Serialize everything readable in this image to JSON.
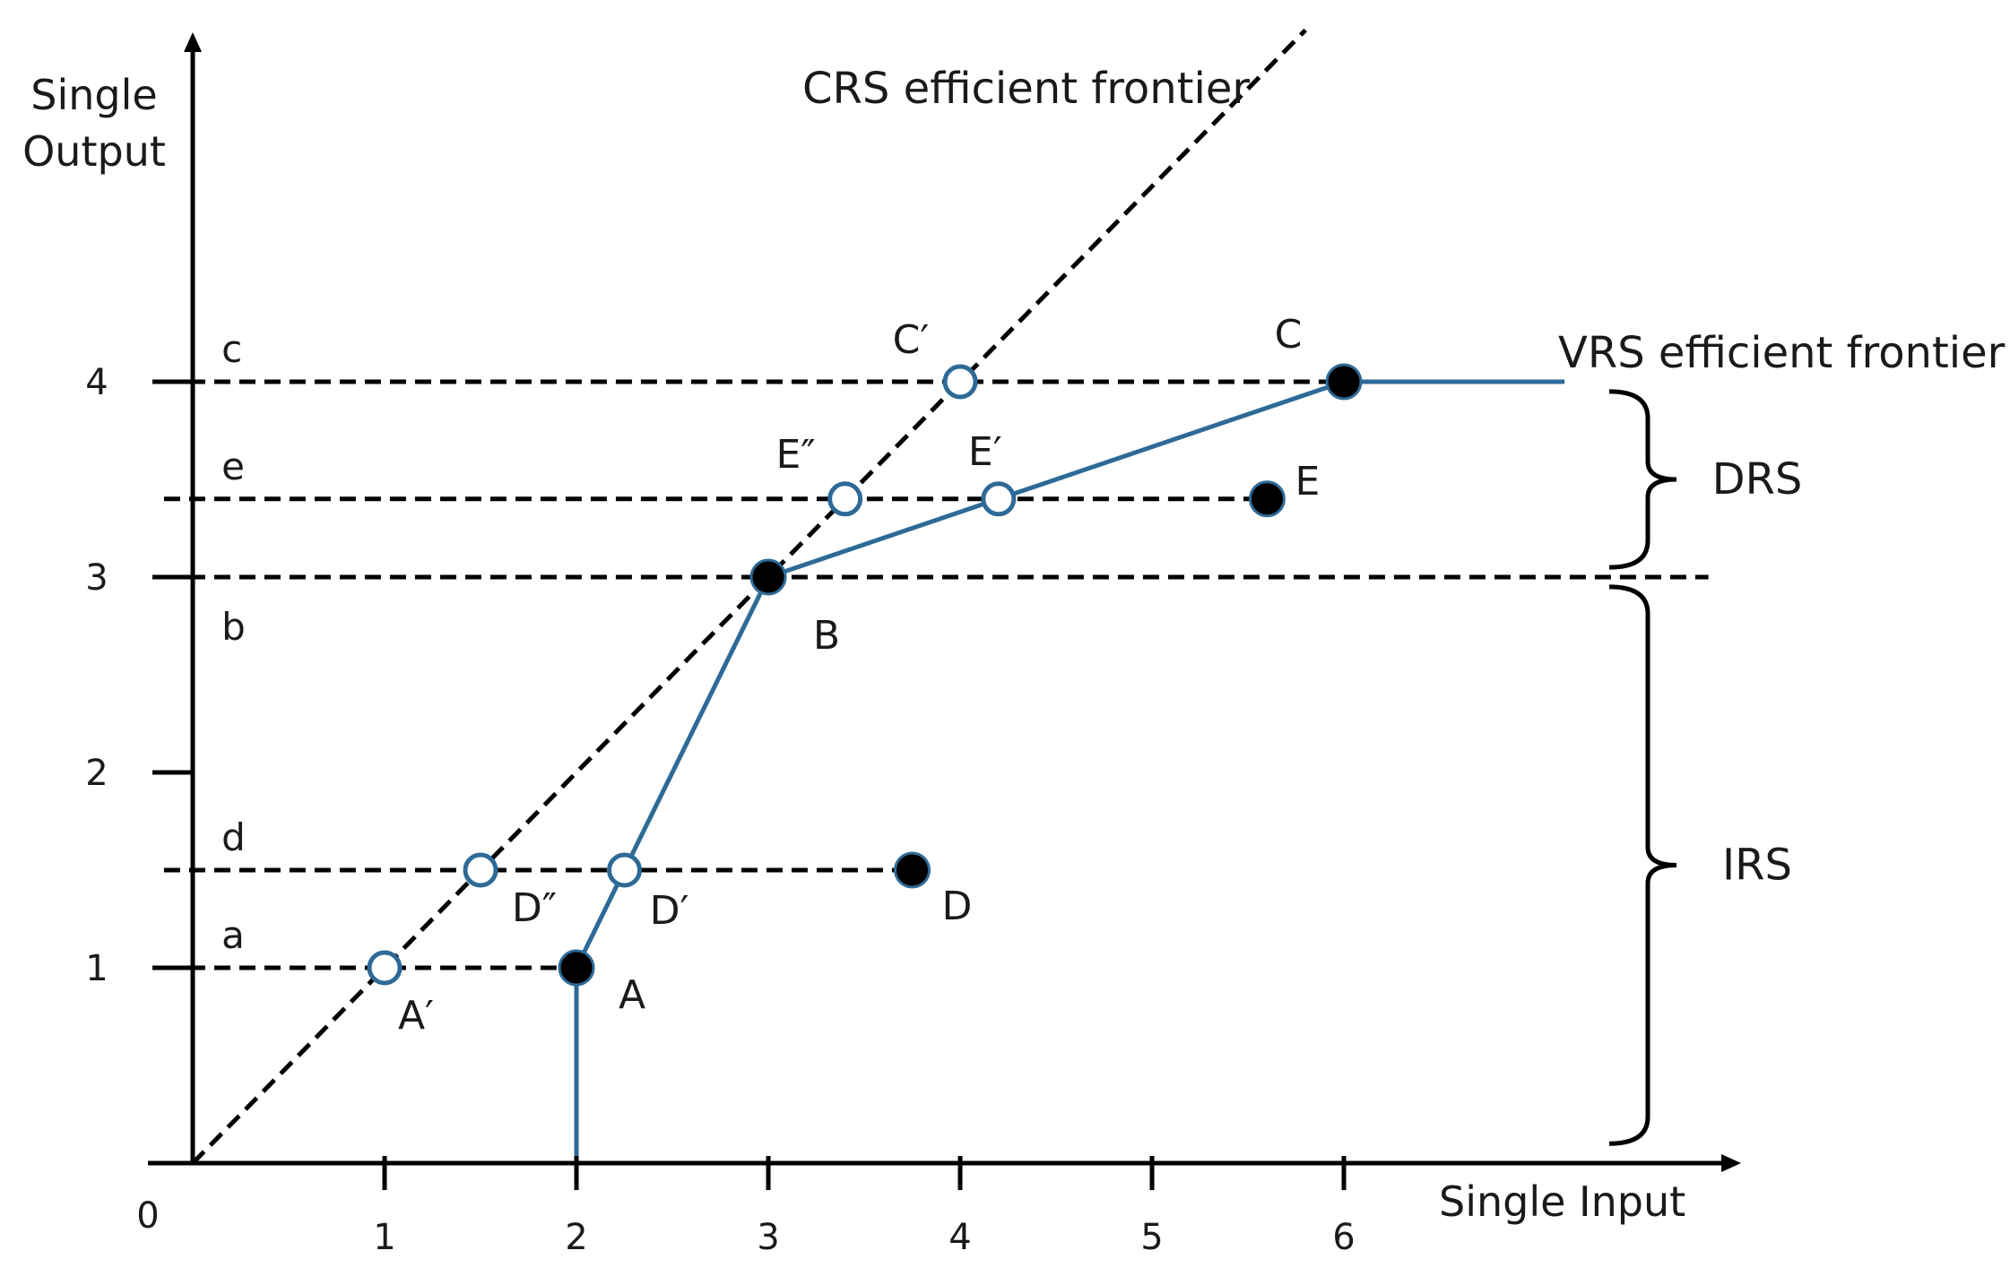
{
  "chart_data": {
    "type": "scatter",
    "xlabel": "Single Input",
    "ylabel_lines": [
      "Single",
      "Output"
    ],
    "origin_label": "0",
    "x_ticks": [
      1,
      2,
      3,
      4,
      5,
      6
    ],
    "y_ticks": [
      1,
      2,
      3,
      4
    ],
    "xlim": [
      0,
      8
    ],
    "ylim": [
      0,
      5.8
    ],
    "crs_frontier": {
      "label": "CRS efficient frontier",
      "points": [
        [
          0,
          0
        ],
        [
          5.8,
          5.8
        ]
      ]
    },
    "vrs_frontier": {
      "label": "VRS efficient frontier",
      "points": [
        [
          2,
          0
        ],
        [
          2,
          1
        ],
        [
          3,
          3
        ],
        [
          6,
          4
        ],
        [
          7.15,
          4
        ]
      ]
    },
    "points_observed": [
      {
        "name": "A",
        "x": 2,
        "y": 1
      },
      {
        "name": "B",
        "x": 3,
        "y": 3
      },
      {
        "name": "C",
        "x": 6,
        "y": 4
      },
      {
        "name": "D",
        "x": 3.75,
        "y": 1.5
      },
      {
        "name": "E",
        "x": 5.6,
        "y": 3.4
      }
    ],
    "points_projected": [
      {
        "name": "A′",
        "x": 1,
        "y": 1
      },
      {
        "name": "D″",
        "x": 1.5,
        "y": 1.5
      },
      {
        "name": "D′",
        "x": 2.25,
        "y": 1.5
      },
      {
        "name": "E″",
        "x": 3.4,
        "y": 3.4
      },
      {
        "name": "E′",
        "x": 4.2,
        "y": 3.4
      },
      {
        "name": "C′",
        "x": 4,
        "y": 4
      }
    ],
    "horizontal_guides": [
      {
        "label": "a",
        "y": 1,
        "x_end": 2
      },
      {
        "label": "d",
        "y": 1.5,
        "x_end": 3.75
      },
      {
        "label": "b",
        "y": 3,
        "x_end": 7.9
      },
      {
        "label": "e",
        "y": 3.4,
        "x_end": 5.6
      },
      {
        "label": "c",
        "y": 4,
        "x_end": 6
      }
    ],
    "regions": [
      {
        "label": "DRS",
        "y_from": 3.05,
        "y_to": 3.95
      },
      {
        "label": "IRS",
        "y_from": 0.1,
        "y_to": 2.95
      }
    ]
  }
}
